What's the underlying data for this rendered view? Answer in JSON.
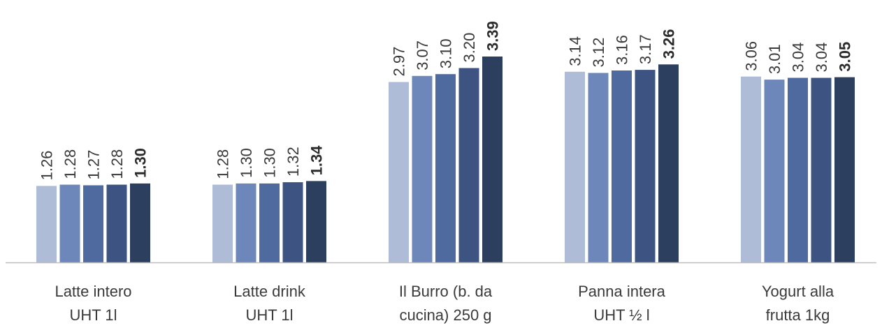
{
  "chart_data": {
    "type": "bar",
    "categories": [
      [
        "Latte intero",
        "UHT 1l"
      ],
      [
        "Latte drink",
        "UHT 1l"
      ],
      [
        "Il Burro (b. da",
        "cucina) 250 g"
      ],
      [
        "Panna intera",
        "UHT ½ l"
      ],
      [
        "Yogurt alla",
        "frutta 1kg"
      ]
    ],
    "series": [
      {
        "values": [
          1.26,
          1.28,
          2.97,
          3.14,
          3.06
        ],
        "color": "#aebcd8"
      },
      {
        "values": [
          1.28,
          1.3,
          3.07,
          3.12,
          3.01
        ],
        "color": "#6d87ba"
      },
      {
        "values": [
          1.27,
          1.3,
          3.1,
          3.16,
          3.04
        ],
        "color": "#4f6a9e"
      },
      {
        "values": [
          1.28,
          1.32,
          3.2,
          3.17,
          3.04
        ],
        "color": "#3d5482"
      },
      {
        "values": [
          1.3,
          1.34,
          3.39,
          3.26,
          3.05
        ],
        "color": "#2d3f5e"
      }
    ],
    "value_labels": [
      [
        "1.26",
        "1.28",
        "1.27",
        "1.28",
        "1.30"
      ],
      [
        "1.28",
        "1.30",
        "1.30",
        "1.32",
        "1.34"
      ],
      [
        "2.97",
        "3.07",
        "3.10",
        "3.20",
        "3.39"
      ],
      [
        "3.14",
        "3.12",
        "3.16",
        "3.17",
        "3.26"
      ],
      [
        "3.06",
        "3.01",
        "3.04",
        "3.04",
        "3.05"
      ]
    ],
    "ylim": [
      0,
      3.39
    ],
    "grid": false,
    "axis_color": "#bfbfbf"
  }
}
